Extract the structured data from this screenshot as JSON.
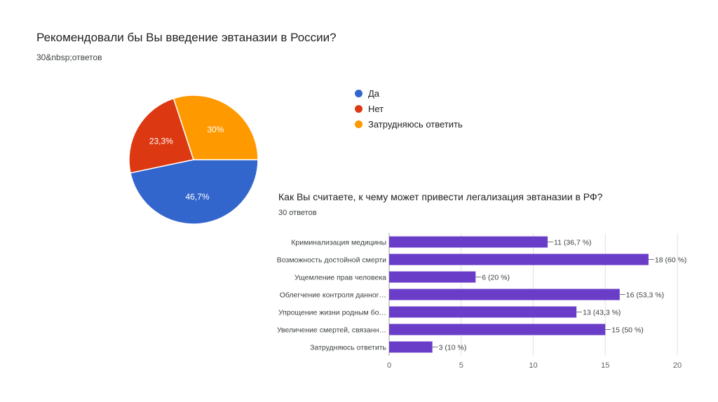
{
  "pie_section": {
    "title": "Рекомендовали бы Вы введение эвтаназии в России?",
    "response_count": "30&nbsp;ответов"
  },
  "bar_section": {
    "title": "Как Вы считаете, к чему может привести легализация эвтаназии в РФ?",
    "response_count": "30 ответов"
  },
  "chart_data": [
    {
      "type": "pie",
      "title": "Рекомендовали бы Вы введение эвтаназии в России?",
      "legend_position": "right",
      "slices": [
        {
          "label": "Да",
          "value": 46.7,
          "display": "46,7%",
          "color": "#3366cc"
        },
        {
          "label": "Нет",
          "value": 23.3,
          "display": "23,3%",
          "color": "#dc3912"
        },
        {
          "label": "Затрудняюсь ответить",
          "value": 30,
          "display": "30%",
          "color": "#ff9900"
        }
      ]
    },
    {
      "type": "bar",
      "orientation": "horizontal",
      "title": "Как Вы считаете, к чему может привести легализация эвтаназии в РФ?",
      "bar_color": "#6a3dc9",
      "xlim": [
        0,
        20
      ],
      "xticks": [
        "0",
        "5",
        "10",
        "15",
        "20"
      ],
      "grid": true,
      "categories": [
        "Криминализация медицины",
        "Возможность достойной смерти",
        "Ущемление прав человека",
        "Облегчение контроля данног…",
        "Упрощение жизни родным бо…",
        "Увеличение смертей, связанн…",
        "Затрудняюсь ответить"
      ],
      "values": [
        11,
        18,
        6,
        16,
        13,
        15,
        3
      ],
      "data_labels": [
        "11 (36,7 %)",
        "18 (60 %)",
        "6 (20 %)",
        "16 (53,3 %)",
        "13 (43,3 %)",
        "15 (50 %)",
        "3 (10 %)"
      ]
    }
  ]
}
